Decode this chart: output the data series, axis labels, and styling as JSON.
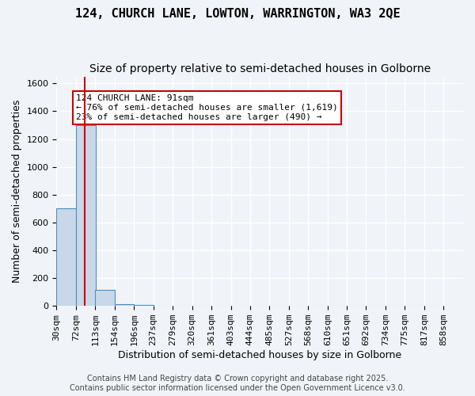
{
  "title_line1": "124, CHURCH LANE, LOWTON, WARRINGTON, WA3 2QE",
  "title_line2": "Size of property relative to semi-detached houses in Golborne",
  "xlabel": "Distribution of semi-detached houses by size in Golborne",
  "ylabel": "Number of semi-detached properties",
  "bin_labels": [
    "30sqm",
    "72sqm",
    "113sqm",
    "154sqm",
    "196sqm",
    "237sqm",
    "279sqm",
    "320sqm",
    "361sqm",
    "403sqm",
    "444sqm",
    "485sqm",
    "527sqm",
    "568sqm",
    "610sqm",
    "651sqm",
    "692sqm",
    "734sqm",
    "775sqm",
    "817sqm",
    "858sqm"
  ],
  "bin_edges": [
    30,
    72,
    113,
    154,
    196,
    237,
    279,
    320,
    361,
    403,
    444,
    485,
    527,
    568,
    610,
    651,
    692,
    734,
    775,
    817,
    858
  ],
  "bar_heights": [
    700,
    1300,
    115,
    12,
    5,
    0,
    0,
    0,
    0,
    0,
    0,
    0,
    0,
    0,
    0,
    0,
    0,
    0,
    0,
    0
  ],
  "bar_color": "#c8d8e8",
  "bar_edge_color": "#4a90c4",
  "red_line_x": 91,
  "red_line_color": "#cc0000",
  "annotation_text": "124 CHURCH LANE: 91sqm\n← 76% of semi-detached houses are smaller (1,619)\n23% of semi-detached houses are larger (490) →",
  "annotation_box_color": "#ffffff",
  "annotation_box_edge": "#cc0000",
  "ylim": [
    0,
    1650
  ],
  "yticks": [
    0,
    200,
    400,
    600,
    800,
    1000,
    1200,
    1400,
    1600
  ],
  "background_color": "#f0f4f8",
  "plot_bg_color": "#f0f4f8",
  "grid_color": "#ffffff",
  "footer_text": "Contains HM Land Registry data © Crown copyright and database right 2025.\nContains public sector information licensed under the Open Government Licence v3.0.",
  "title_fontsize": 11,
  "subtitle_fontsize": 10,
  "axis_label_fontsize": 9,
  "tick_fontsize": 8,
  "annotation_fontsize": 8,
  "footer_fontsize": 7
}
